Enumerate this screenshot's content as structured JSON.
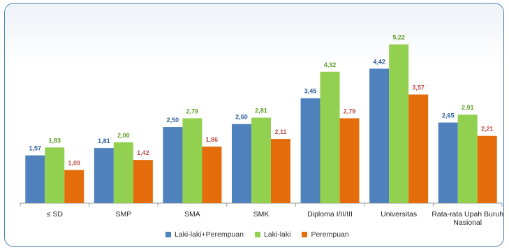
{
  "chart_data": {
    "type": "bar",
    "categories": [
      "≤ SD",
      "SMP",
      "SMA",
      "SMK",
      "Diploma I/II/III",
      "Universitas",
      "Rata-rata Upah Buruh Nasional"
    ],
    "series": [
      {
        "name": "Laki-laki+Perempuan",
        "color": "#4f81bd",
        "label_color": "#2f5f9e",
        "values": [
          1.57,
          1.81,
          2.5,
          2.6,
          3.45,
          4.42,
          2.65
        ],
        "labels": [
          "1,57",
          "1,81",
          "2,50",
          "2,60",
          "3,45",
          "4,42",
          "2,65"
        ]
      },
      {
        "name": "Laki-laki",
        "color": "#92d050",
        "label_color": "#5f9e25",
        "values": [
          1.83,
          2.0,
          2.79,
          2.81,
          4.32,
          5.22,
          2.91
        ],
        "labels": [
          "1,83",
          "2,00",
          "2,79",
          "2,81",
          "4,32",
          "5,22",
          "2,91"
        ]
      },
      {
        "name": "Perempuan",
        "color": "#e46c0a",
        "label_color": "#c0504d",
        "values": [
          1.09,
          1.42,
          1.86,
          2.11,
          2.79,
          3.57,
          2.21
        ],
        "labels": [
          "1,09",
          "1,42",
          "1,86",
          "2,11",
          "2,79",
          "3,57",
          "2,21"
        ]
      }
    ],
    "title": "",
    "xlabel": "",
    "ylabel": "",
    "ylim": [
      0,
      5.6
    ],
    "grid": false,
    "legend_position": "bottom"
  }
}
